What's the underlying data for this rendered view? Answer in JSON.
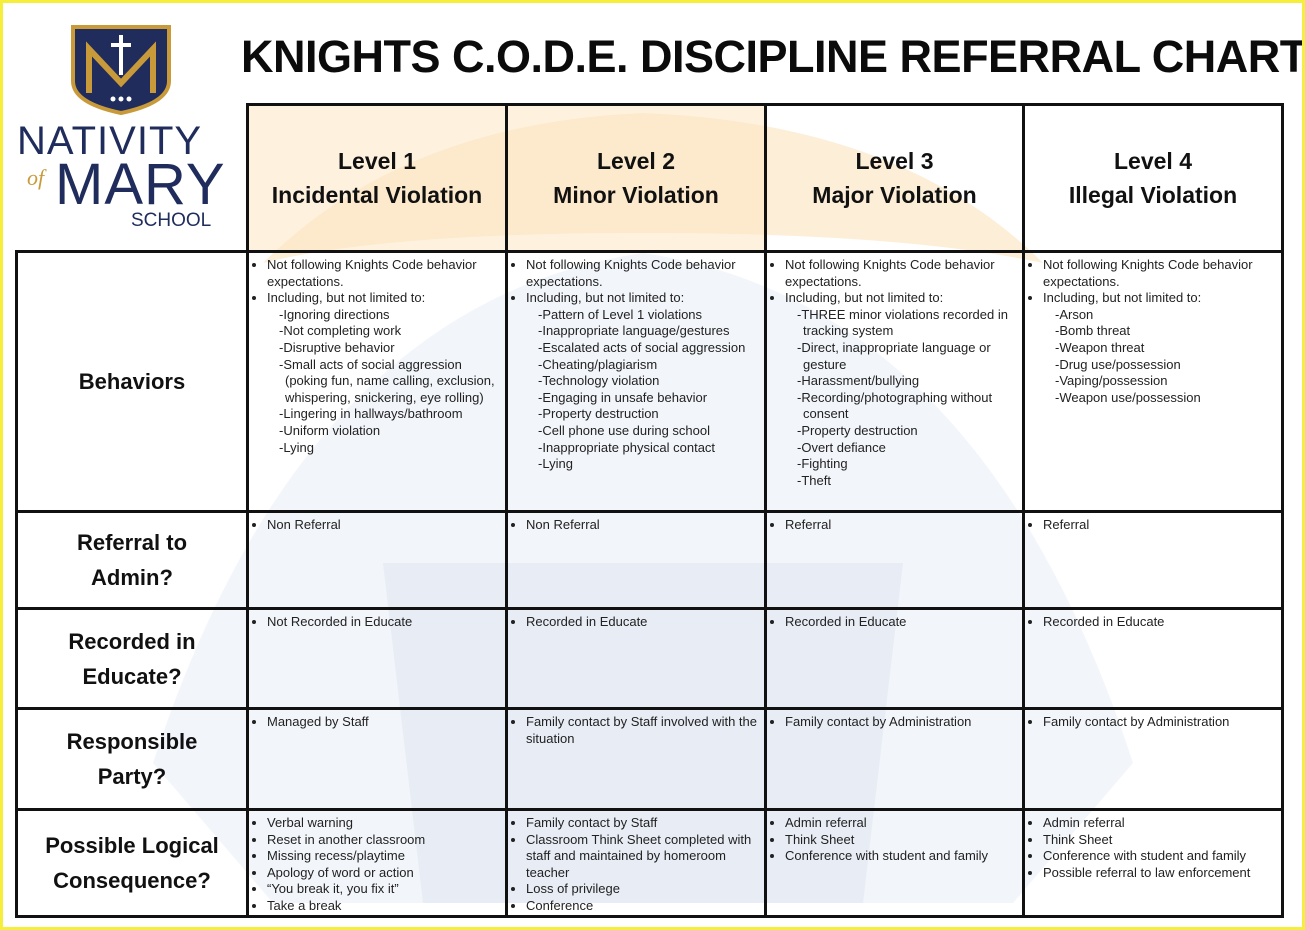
{
  "logo": {
    "line1": "NATIVITY",
    "of": "of",
    "line2": "MARY",
    "line3": "SCHOOL"
  },
  "header": {
    "title": "KNIGHTS C.O.D.E. DISCIPLINE REFERRAL CHART"
  },
  "table": {
    "columns": [
      {
        "level": "Level 1",
        "name": "Incidental Violation"
      },
      {
        "level": "Level 2",
        "name": "Minor Violation"
      },
      {
        "level": "Level 3",
        "name": "Major Violation"
      },
      {
        "level": "Level 4",
        "name": "Illegal Violation"
      }
    ],
    "rows": [
      {
        "label": [
          "Behaviors"
        ],
        "cells": [
          [
            {
              "text": "Not following Knights Code behavior expectations."
            },
            {
              "text": "Including, but not limited to:",
              "sub": [
                "-Ignoring directions",
                "-Not completing work",
                "-Disruptive behavior",
                "-Small acts of social aggression (poking fun, name calling, exclusion, whispering, snickering, eye rolling)",
                "-Lingering in hallways/bathroom",
                "-Uniform violation",
                "-Lying"
              ]
            }
          ],
          [
            {
              "text": "Not following Knights Code behavior expectations."
            },
            {
              "text": "Including, but not limited to:",
              "sub": [
                "-Pattern of Level 1 violations",
                "-Inappropriate language/gestures",
                "-Escalated acts of social aggression",
                "-Cheating/plagiarism",
                "-Technology violation",
                "-Engaging in unsafe behavior",
                "-Property destruction",
                "-Cell phone use during school",
                "-Inappropriate physical contact",
                "-Lying"
              ]
            }
          ],
          [
            {
              "text": "Not following Knights Code behavior expectations."
            },
            {
              "text": "Including, but not limited to:",
              "sub": [
                "-THREE minor violations recorded in tracking system",
                "-Direct, inappropriate language or gesture",
                "-Harassment/bullying",
                "-Recording/photographing without consent",
                "-Property destruction",
                "-Overt defiance",
                "-Fighting",
                "-Theft"
              ]
            }
          ],
          [
            {
              "text": "Not following Knights Code behavior expectations."
            },
            {
              "text": "Including, but not limited to:",
              "sub": [
                "-Arson",
                "-Bomb threat",
                "-Weapon threat",
                "-Drug use/possession",
                "-Vaping/possession",
                "-Weapon use/possession"
              ]
            }
          ]
        ]
      },
      {
        "label": [
          "Referral to",
          "Admin?"
        ],
        "cells": [
          [
            {
              "text": "Non Referral"
            }
          ],
          [
            {
              "text": "Non Referral"
            }
          ],
          [
            {
              "text": "Referral"
            }
          ],
          [
            {
              "text": "Referral"
            }
          ]
        ]
      },
      {
        "label": [
          "Recorded in",
          "Educate?"
        ],
        "cells": [
          [
            {
              "text": "Not Recorded in Educate"
            }
          ],
          [
            {
              "text": "Recorded in Educate"
            }
          ],
          [
            {
              "text": "Recorded in Educate"
            }
          ],
          [
            {
              "text": "Recorded in Educate"
            }
          ]
        ]
      },
      {
        "label": [
          "Responsible",
          "Party?"
        ],
        "cells": [
          [
            {
              "text": "Managed by Staff"
            }
          ],
          [
            {
              "text": "Family contact by Staff involved with the situation"
            }
          ],
          [
            {
              "text": "Family contact by Administration"
            }
          ],
          [
            {
              "text": "Family contact by Administration"
            }
          ]
        ]
      },
      {
        "label": [
          "Possible Logical",
          "Consequence?"
        ],
        "cells": [
          [
            {
              "text": "Verbal warning"
            },
            {
              "text": "Reset in another classroom"
            },
            {
              "text": "Missing recess/playtime"
            },
            {
              "text": "Apology of word or action"
            },
            {
              "text": "“You break it, you fix it”"
            },
            {
              "text": "Take a break"
            }
          ],
          [
            {
              "text": "Family contact by Staff"
            },
            {
              "text": "Classroom Think Sheet completed with staff and maintained by homeroom teacher"
            },
            {
              "text": "Loss of privilege"
            },
            {
              "text": "Conference"
            }
          ],
          [
            {
              "text": "Admin referral"
            },
            {
              "text": "Think Sheet"
            },
            {
              "text": "Conference with student and family"
            }
          ],
          [
            {
              "text": "Admin referral"
            },
            {
              "text": "Think Sheet"
            },
            {
              "text": "Conference with student and family"
            },
            {
              "text": "Possible referral to law enforcement"
            }
          ]
        ]
      }
    ]
  }
}
